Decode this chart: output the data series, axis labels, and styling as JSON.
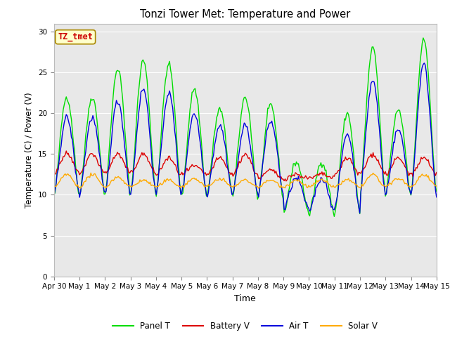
{
  "title": "Tonzi Tower Met: Temperature and Power",
  "xlabel": "Time",
  "ylabel": "Temperature (C) / Power (V)",
  "ylim": [
    0,
    31
  ],
  "yticks": [
    0,
    5,
    10,
    15,
    20,
    25,
    30
  ],
  "annotation_text": "TZ_tmet",
  "annotation_color": "#cc0000",
  "annotation_bg": "#ffffcc",
  "annotation_border": "#aa8800",
  "fig_bg": "#ffffff",
  "plot_bg": "#e8e8e8",
  "grid_color": "#ffffff",
  "line_colors": {
    "panel": "#00dd00",
    "battery": "#dd0000",
    "air": "#0000dd",
    "solar": "#ffaa00"
  },
  "legend_labels": [
    "Panel T",
    "Battery V",
    "Air T",
    "Solar V"
  ],
  "xtick_labels": [
    "Apr 30",
    "May 1",
    "May 2",
    "May 3",
    "May 4",
    "May 5",
    "May 6",
    "May 7",
    "May 8",
    "May 9",
    "May 10",
    "May 11",
    "May 12",
    "May 13",
    "May 14",
    "May 15"
  ],
  "num_points": 375
}
